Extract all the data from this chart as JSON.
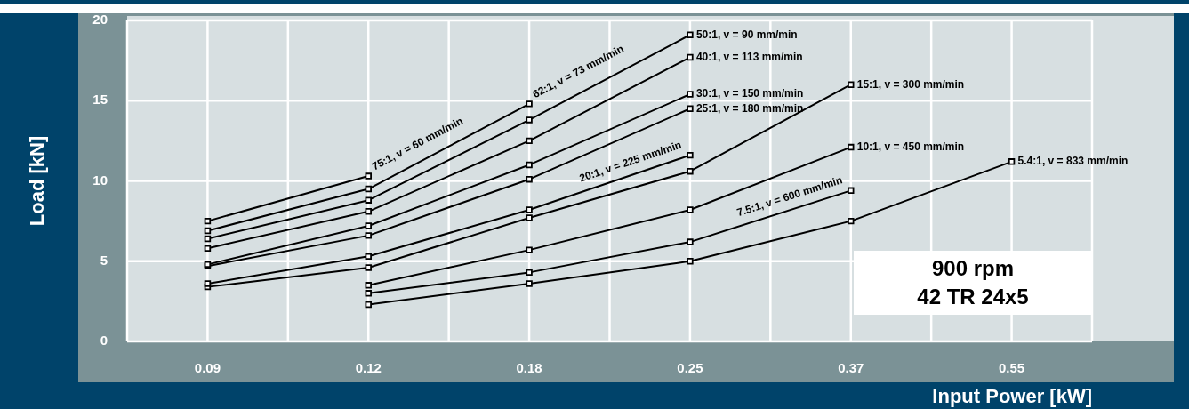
{
  "chart_data": {
    "type": "line",
    "xlabel": "Input Power [kW]",
    "ylabel": "Load [kN]",
    "categories": [
      "0.09",
      "0.12",
      "0.18",
      "0.25",
      "0.37",
      "0.55"
    ],
    "ylim": [
      0,
      20
    ],
    "yticks": [
      0,
      5,
      10,
      15,
      20
    ],
    "grid": true,
    "legend": false,
    "marker": "square",
    "line_style": "solid",
    "annotations": [
      "900 rpm",
      "42 TR 24x5"
    ],
    "series": [
      {
        "name": "75:1, v = 60 mm/min",
        "color": "#000000",
        "values": [
          7.5,
          10.3,
          null,
          null,
          null,
          null
        ]
      },
      {
        "name": "62:1, v = 73 mm/min",
        "color": "#000000",
        "values": [
          6.9,
          9.5,
          14.8,
          null,
          null,
          null
        ]
      },
      {
        "name": "50:1, v = 90 mm/min",
        "color": "#000000",
        "values": [
          6.4,
          8.8,
          13.8,
          19.1,
          null,
          null
        ]
      },
      {
        "name": "40:1, v = 113 mm/min",
        "color": "#000000",
        "values": [
          5.8,
          8.1,
          12.5,
          17.7,
          null,
          null
        ]
      },
      {
        "name": "30:1, v = 150 mm/min",
        "color": "#000000",
        "values": [
          4.8,
          7.2,
          11.0,
          15.4,
          null,
          null
        ]
      },
      {
        "name": "25:1, v = 180 mm/min",
        "color": "#000000",
        "values": [
          4.7,
          6.6,
          10.1,
          14.5,
          null,
          null
        ]
      },
      {
        "name": "20:1, v = 225 mm/min",
        "color": "#000000",
        "values": [
          3.6,
          5.3,
          8.2,
          11.6,
          null,
          null
        ]
      },
      {
        "name": "15:1, v = 300 mm/min",
        "color": "#000000",
        "values": [
          3.4,
          4.6,
          7.7,
          10.6,
          16.0,
          null
        ]
      },
      {
        "name": "10:1, v = 450 mm/min",
        "color": "#000000",
        "values": [
          null,
          3.5,
          5.7,
          8.2,
          12.1,
          null
        ]
      },
      {
        "name": "7.5:1, v = 600 mm/min",
        "color": "#000000",
        "values": [
          null,
          3.0,
          4.3,
          6.2,
          9.4,
          null
        ]
      },
      {
        "name": "5.4:1, v = 833 mm/min",
        "color": "#000000",
        "values": [
          null,
          2.3,
          3.6,
          5.0,
          7.5,
          11.2
        ]
      }
    ]
  }
}
